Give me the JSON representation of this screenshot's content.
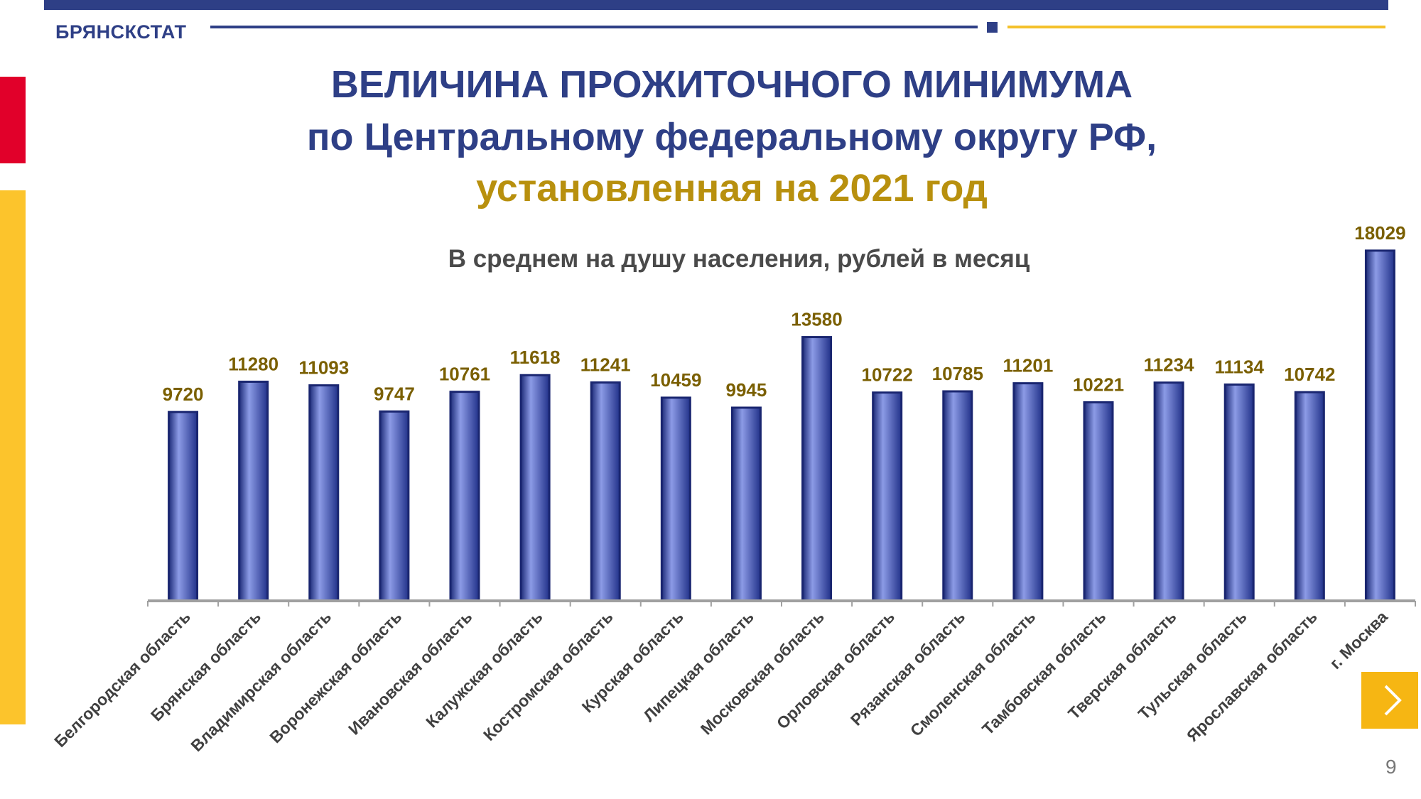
{
  "header": {
    "brand": "БРЯНСКСТАТ",
    "title_line1": "ВЕЛИЧИНА ПРОЖИТОЧНОГО МИНИМУМА",
    "title_line2": "по Центральному федеральному округу РФ,",
    "title_line3": "установленная  на 2021 год",
    "colors": {
      "primary": "#2e3f86",
      "gold": "#b8900e",
      "red": "#e1002a",
      "yellow": "#fcc42c"
    }
  },
  "subtitle": "В среднем на душу населения, рублей в месяц",
  "chart_data": {
    "type": "bar",
    "title": "",
    "xlabel": "",
    "ylabel": "",
    "categories": [
      "Белгородская область",
      "Брянская область",
      "Владимирская область",
      "Воронежская область",
      "Ивановская область",
      "Калужская область",
      "Костромская область",
      "Курская область",
      "Липецкая область",
      "Московская область",
      "Орловская область",
      "Рязанская область",
      "Смоленская область",
      "Тамбовская область",
      "Тверская область",
      "Тульская область",
      "Ярославская область",
      "г. Москва"
    ],
    "values": [
      9720,
      11280,
      11093,
      9747,
      10761,
      11618,
      11241,
      10459,
      9945,
      13580,
      10722,
      10785,
      11201,
      10221,
      11234,
      11134,
      10742,
      18029
    ],
    "ylim": [
      0,
      18500
    ],
    "grid": false,
    "legend": "none",
    "bar_color": "#3a4fb0",
    "label_color": "#7a5f00"
  },
  "nav": {
    "next_icon": "chevron-right-icon",
    "page_number": "9"
  }
}
